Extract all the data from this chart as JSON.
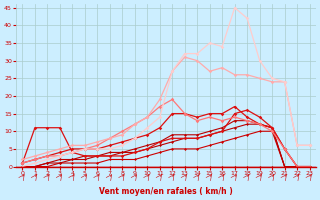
{
  "xlabel": "Vent moyen/en rafales ( km/h )",
  "background_color": "#cceeff",
  "grid_color": "#aacccc",
  "xlim": [
    -0.5,
    23.5
  ],
  "ylim": [
    0,
    46
  ],
  "yticks": [
    0,
    5,
    10,
    15,
    20,
    25,
    30,
    35,
    40,
    45
  ],
  "xticks": [
    0,
    1,
    2,
    3,
    4,
    5,
    6,
    7,
    8,
    9,
    10,
    11,
    12,
    13,
    14,
    15,
    16,
    17,
    18,
    19,
    20,
    21,
    22,
    23
  ],
  "series": [
    {
      "x": [
        0,
        1,
        2,
        3,
        4,
        5,
        6,
        7,
        8,
        9,
        10,
        11,
        12,
        13,
        14,
        15,
        16,
        17,
        18,
        19,
        20,
        21,
        22,
        23
      ],
      "y": [
        0,
        0,
        0,
        0,
        0,
        0,
        0,
        0,
        0,
        0,
        0,
        0,
        0,
        0,
        0,
        0,
        0,
        0,
        0,
        0,
        0,
        0,
        0,
        0
      ],
      "color": "#cc0000",
      "lw": 0.8,
      "marker": "D",
      "ms": 1.5
    },
    {
      "x": [
        0,
        1,
        2,
        3,
        4,
        5,
        6,
        7,
        8,
        9,
        10,
        11,
        12,
        13,
        14,
        15,
        16,
        17,
        18,
        19,
        20,
        21,
        22,
        23
      ],
      "y": [
        0,
        0,
        0,
        1,
        1,
        1,
        1,
        2,
        2,
        2,
        3,
        4,
        5,
        5,
        5,
        6,
        7,
        8,
        9,
        10,
        10,
        0,
        0,
        0
      ],
      "color": "#cc0000",
      "lw": 0.8,
      "marker": "D",
      "ms": 1.5
    },
    {
      "x": [
        0,
        1,
        2,
        3,
        4,
        5,
        6,
        7,
        8,
        9,
        10,
        11,
        12,
        13,
        14,
        15,
        16,
        17,
        18,
        19,
        20,
        21,
        22,
        23
      ],
      "y": [
        0,
        0,
        1,
        1,
        2,
        2,
        3,
        3,
        4,
        4,
        5,
        6,
        7,
        8,
        8,
        9,
        10,
        11,
        12,
        12,
        11,
        0,
        0,
        0
      ],
      "color": "#bb0000",
      "lw": 0.8,
      "marker": "D",
      "ms": 1.5
    },
    {
      "x": [
        0,
        1,
        2,
        3,
        4,
        5,
        6,
        7,
        8,
        9,
        10,
        11,
        12,
        13,
        14,
        15,
        16,
        17,
        18,
        19,
        20,
        21,
        22,
        23
      ],
      "y": [
        0,
        0,
        1,
        2,
        2,
        3,
        3,
        4,
        4,
        5,
        6,
        7,
        9,
        9,
        9,
        10,
        11,
        13,
        13,
        12,
        11,
        0,
        0,
        0
      ],
      "color": "#bb0000",
      "lw": 0.8,
      "marker": "D",
      "ms": 1.5
    },
    {
      "x": [
        0,
        1,
        2,
        3,
        4,
        5,
        6,
        7,
        8,
        9,
        10,
        11,
        12,
        13,
        14,
        15,
        16,
        17,
        18,
        19,
        20,
        21,
        22,
        23
      ],
      "y": [
        1,
        11,
        11,
        11,
        4,
        3,
        3,
        3,
        3,
        4,
        5,
        7,
        8,
        8,
        8,
        9,
        10,
        15,
        16,
        14,
        11,
        5,
        0,
        0
      ],
      "color": "#dd1111",
      "lw": 0.9,
      "marker": "D",
      "ms": 1.8
    },
    {
      "x": [
        0,
        1,
        2,
        3,
        4,
        5,
        6,
        7,
        8,
        9,
        10,
        11,
        12,
        13,
        14,
        15,
        16,
        17,
        18,
        19,
        20,
        21,
        22,
        23
      ],
      "y": [
        1,
        2,
        3,
        4,
        5,
        5,
        5,
        6,
        7,
        8,
        9,
        11,
        15,
        15,
        14,
        15,
        15,
        17,
        14,
        12,
        11,
        5,
        0,
        0
      ],
      "color": "#dd1111",
      "lw": 0.9,
      "marker": "D",
      "ms": 1.8
    },
    {
      "x": [
        0,
        1,
        2,
        3,
        4,
        5,
        6,
        7,
        8,
        9,
        10,
        11,
        12,
        13,
        14,
        15,
        16,
        17,
        18,
        19,
        20,
        21,
        22,
        23
      ],
      "y": [
        1,
        2,
        3,
        3,
        4,
        5,
        6,
        8,
        10,
        12,
        14,
        17,
        19,
        15,
        13,
        14,
        13,
        14,
        13,
        12,
        10,
        5,
        0,
        0
      ],
      "color": "#ff7777",
      "lw": 0.9,
      "marker": "D",
      "ms": 1.8
    },
    {
      "x": [
        0,
        1,
        2,
        3,
        4,
        5,
        6,
        7,
        8,
        9,
        10,
        11,
        12,
        13,
        14,
        15,
        16,
        17,
        18,
        19,
        20,
        21,
        22,
        23
      ],
      "y": [
        2,
        3,
        4,
        5,
        6,
        6,
        7,
        8,
        9,
        12,
        14,
        19,
        27,
        31,
        30,
        27,
        28,
        26,
        26,
        25,
        24,
        24,
        6,
        6
      ],
      "color": "#ffaaaa",
      "lw": 0.9,
      "marker": "D",
      "ms": 1.8
    },
    {
      "x": [
        0,
        1,
        2,
        3,
        4,
        5,
        6,
        7,
        8,
        9,
        10,
        11,
        12,
        13,
        14,
        15,
        16,
        17,
        18,
        19,
        20,
        21,
        22,
        23
      ],
      "y": [
        0,
        1,
        2,
        3,
        4,
        5,
        5,
        5,
        6,
        8,
        11,
        14,
        27,
        32,
        32,
        35,
        34,
        45,
        42,
        30,
        25,
        24,
        6,
        6
      ],
      "color": "#ffcccc",
      "lw": 0.9,
      "marker": "D",
      "ms": 1.8
    }
  ],
  "arrow_color": "#cc0000",
  "xlabel_color": "#cc0000",
  "tick_color": "#cc0000",
  "xlabel_fontsize": 5.5,
  "tick_fontsize": 4.5
}
